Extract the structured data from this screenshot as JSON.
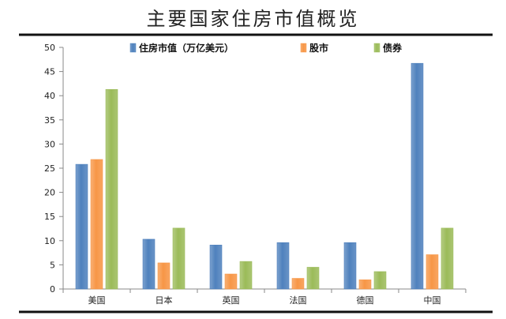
{
  "chart_data": {
    "type": "bar",
    "title": "主要国家住房市值概览",
    "categories": [
      "美国",
      "日本",
      "英国",
      "法国",
      "德国",
      "中国"
    ],
    "series": [
      {
        "name": "住房市值（万亿美元）",
        "color": "#4f81bd",
        "values": [
          25.8,
          10.3,
          9.1,
          9.6,
          9.6,
          46.7
        ]
      },
      {
        "name": "股市",
        "color": "#f79646",
        "values": [
          26.8,
          5.4,
          3.1,
          2.2,
          1.9,
          7.1
        ]
      },
      {
        "name": "债券",
        "color": "#9bbb59",
        "values": [
          41.3,
          12.6,
          5.7,
          4.5,
          3.6,
          12.6
        ]
      }
    ],
    "ylim": [
      0,
      50
    ],
    "yticks": [
      0,
      5,
      10,
      15,
      20,
      25,
      30,
      35,
      40,
      45,
      50
    ],
    "xlabel": "",
    "ylabel": "",
    "grid": false,
    "legend_position": "top"
  }
}
